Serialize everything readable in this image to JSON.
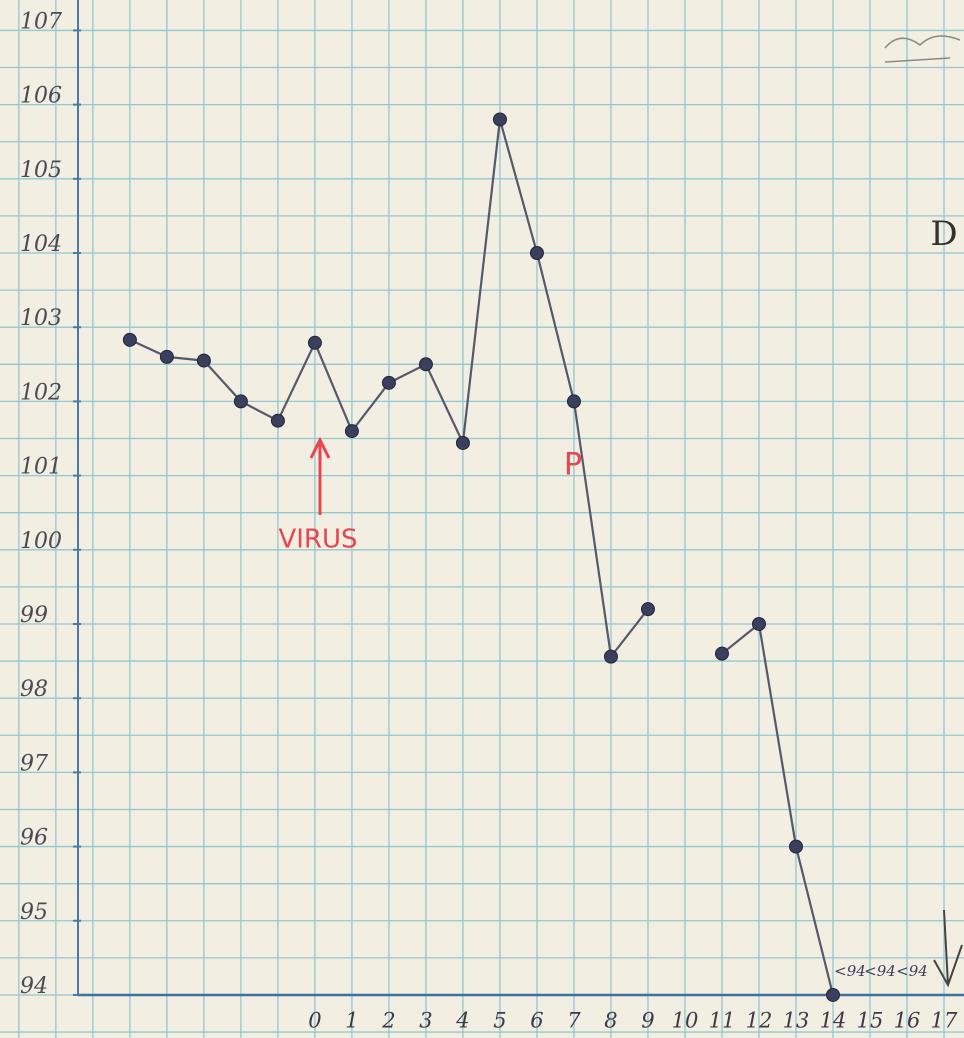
{
  "chart_data": {
    "type": "line",
    "x": [
      -5,
      -4,
      -3,
      -2,
      -1,
      0,
      1,
      2,
      3,
      4,
      5,
      6,
      7,
      8,
      9,
      10,
      11,
      12,
      13,
      14
    ],
    "values": [
      102.83,
      102.6,
      102.55,
      102.0,
      101.74,
      102.79,
      101.6,
      102.25,
      102.5,
      101.44,
      105.8,
      104.0,
      102.0,
      98.56,
      99.2,
      null,
      98.6,
      99.0,
      96.0,
      94.0
    ],
    "color": "#3b3f5e",
    "xlim": [
      -8.51,
      17.54
    ],
    "ylim": [
      93.42,
      107.41
    ],
    "xticks": [
      0,
      1,
      2,
      3,
      4,
      5,
      6,
      7,
      8,
      9,
      10,
      11,
      12,
      13,
      14,
      15,
      16,
      17
    ],
    "yticks": [
      94,
      95,
      96,
      97,
      98,
      99,
      100,
      101,
      102,
      103,
      104,
      105,
      106,
      107
    ],
    "annotations": [
      "VIRUS",
      "P",
      "D",
      "<94",
      "<94",
      "<94"
    ]
  }
}
